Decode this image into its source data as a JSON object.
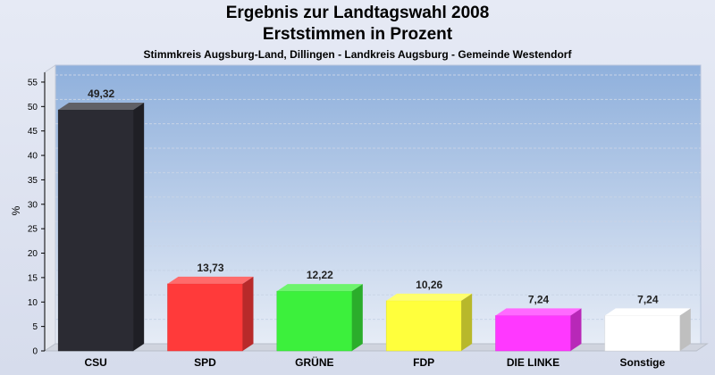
{
  "chart_data": {
    "type": "bar",
    "title": "Ergebnis zur Landtagswahl 2008",
    "title_line2": "Erststimmen in Prozent",
    "subtitle": "Stimmkreis Augsburg-Land, Dillingen - Landkreis Augsburg - Gemeinde Westendorf",
    "ylabel": "%",
    "ylim": [
      0,
      57
    ],
    "yticks": [
      0,
      5,
      10,
      15,
      20,
      25,
      30,
      35,
      40,
      45,
      50,
      55
    ],
    "categories": [
      "CSU",
      "SPD",
      "GRÜNE",
      "FDP",
      "DIE LINKE",
      "Sonstige"
    ],
    "values": [
      49.32,
      13.73,
      12.22,
      10.26,
      7.24,
      7.24
    ],
    "value_labels": [
      "49,32",
      "13,73",
      "12,22",
      "10,26",
      "7,24",
      "7,24"
    ],
    "colors": [
      "#2b2b33",
      "#ff3a3a",
      "#3cf03c",
      "#ffff3c",
      "#ff38ff",
      "#ffffff"
    ],
    "grid": true,
    "legend": "none"
  }
}
